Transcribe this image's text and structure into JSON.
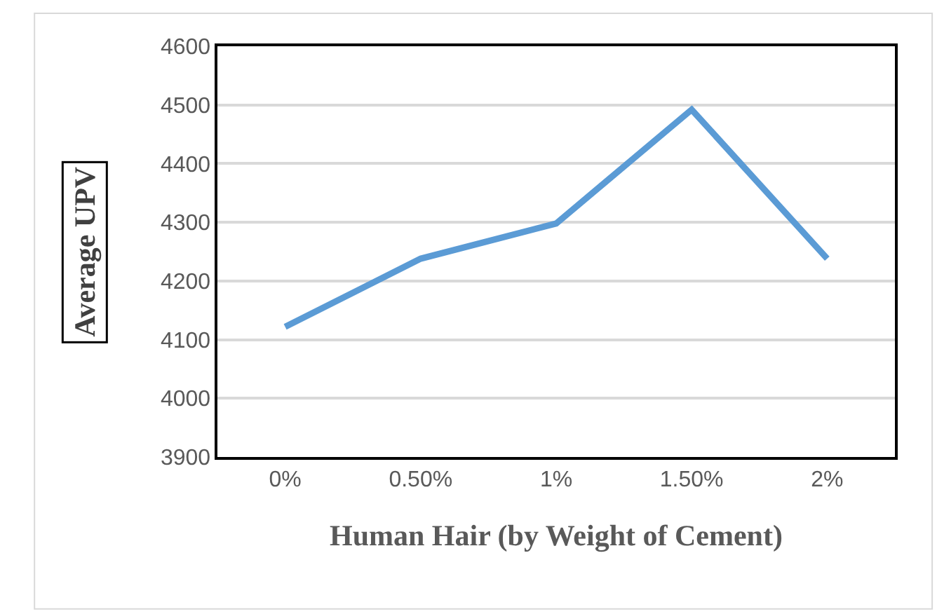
{
  "chart_data": {
    "type": "line",
    "categories": [
      "0%",
      "0.50%",
      "1%",
      "1.50%",
      "2%"
    ],
    "series": [
      {
        "color": "#5b9bd5",
        "values": [
          4122,
          4238,
          4298,
          4492,
          4238
        ]
      }
    ],
    "xlabel": "Human Hair (by Weight of Cement)",
    "ylabel": "Average UPV",
    "ylim": [
      3900,
      4600
    ],
    "yticks": [
      3900,
      4000,
      4100,
      4200,
      4300,
      4400,
      4500,
      4600
    ],
    "grid": "y",
    "legend": false,
    "marker": "none",
    "line_style": "solid"
  }
}
